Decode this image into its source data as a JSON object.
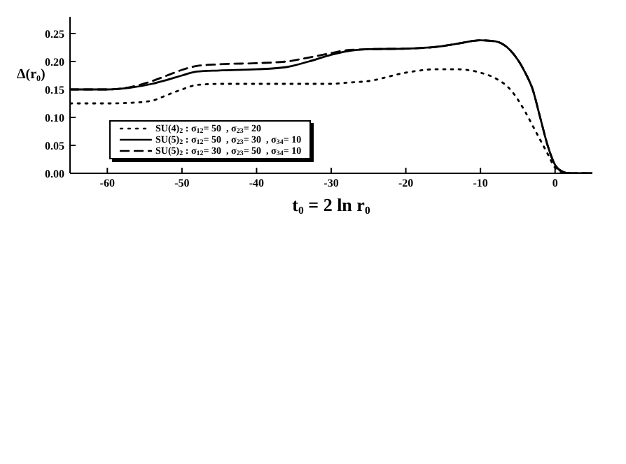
{
  "chart_data": {
    "type": "line",
    "xlabel": "t$_{0}$ = 2 ln r$_{0}$",
    "ylabel": "Δ(r$_{0}$)",
    "x": [
      -65,
      -60,
      -57,
      -54,
      -52,
      -50,
      -48,
      -45,
      -40,
      -36,
      -33,
      -30,
      -28,
      -25,
      -20,
      -16,
      -13,
      -10,
      -8,
      -6,
      -4,
      -3,
      -2,
      -1,
      0,
      1,
      2,
      5
    ],
    "series": [
      {
        "name": "SU(4)$_{2}$ : σ$_{12}$= 50  , σ$_{23}$= 20",
        "color": "#000000",
        "line_style": "dotted",
        "values": [
          0.125,
          0.125,
          0.126,
          0.13,
          0.14,
          0.15,
          0.158,
          0.16,
          0.16,
          0.16,
          0.16,
          0.16,
          0.162,
          0.165,
          0.18,
          0.186,
          0.186,
          0.18,
          0.17,
          0.15,
          0.11,
          0.085,
          0.06,
          0.035,
          0.01,
          0.002,
          0,
          0
        ]
      },
      {
        "name": "SU(5)$_{2}$ : σ$_{12}$= 50  , σ$_{23}$= 30  , σ$_{34}$= 10",
        "color": "#000000",
        "line_style": "solid",
        "values": [
          0.15,
          0.15,
          0.153,
          0.16,
          0.167,
          0.175,
          0.182,
          0.184,
          0.186,
          0.19,
          0.2,
          0.212,
          0.218,
          0.222,
          0.223,
          0.226,
          0.232,
          0.238,
          0.236,
          0.22,
          0.18,
          0.15,
          0.1,
          0.05,
          0.015,
          0.003,
          0,
          0
        ]
      },
      {
        "name": "SU(5)$_{2}$ : σ$_{12}$= 30  , σ$_{23}$= 50  , σ$_{34}$= 10",
        "color": "#000000",
        "line_style": "dashed",
        "values": [
          0.15,
          0.15,
          0.154,
          0.165,
          0.175,
          0.185,
          0.192,
          0.195,
          0.197,
          0.2,
          0.207,
          0.215,
          0.22,
          0.222,
          0.223,
          0.226,
          0.232,
          0.238,
          0.236,
          0.22,
          0.18,
          0.15,
          0.1,
          0.05,
          0.015,
          0.003,
          0,
          0
        ]
      }
    ],
    "xlim": [
      -65,
      5
    ],
    "xticks": [
      -60,
      -50,
      -40,
      -30,
      -20,
      -10,
      0
    ],
    "ylim": [
      0,
      0.28
    ],
    "yticks": [
      {
        "value": 0,
        "label": "0.00"
      },
      0.05,
      {
        "value": 0.1,
        "label": "0.10"
      },
      0.15,
      {
        "value": 0.2,
        "label": "0.20"
      },
      0.25
    ],
    "grid": false,
    "legend": "bottom left"
  }
}
